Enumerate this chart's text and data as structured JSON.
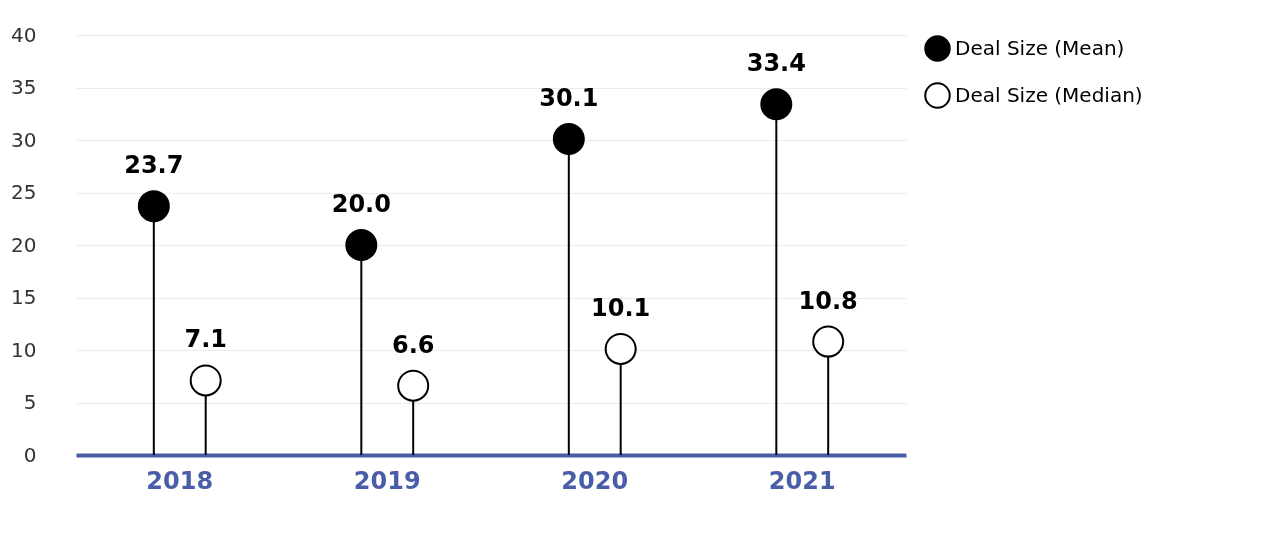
{
  "chart_data": {
    "type": "lollipop",
    "categories": [
      "2018",
      "2019",
      "2020",
      "2021"
    ],
    "series": [
      {
        "name": "Deal Size (Mean)",
        "color": "#000000",
        "values": [
          23.7,
          20.0,
          30.1,
          33.4
        ],
        "value_labels": [
          "23.7",
          "20.0",
          "30.1",
          "33.4"
        ]
      },
      {
        "name": "Deal Size (Median)",
        "color": "#ffffff",
        "values": [
          7.1,
          6.6,
          10.1,
          10.8
        ],
        "value_labels": [
          "7.1",
          "6.6",
          "10.1",
          "10.8"
        ]
      }
    ],
    "ylim": [
      0,
      40
    ],
    "yticks": [
      0,
      5,
      10,
      15,
      20,
      25,
      30,
      35,
      40
    ],
    "grid": "y",
    "legend": "top right",
    "marker": "circle"
  }
}
